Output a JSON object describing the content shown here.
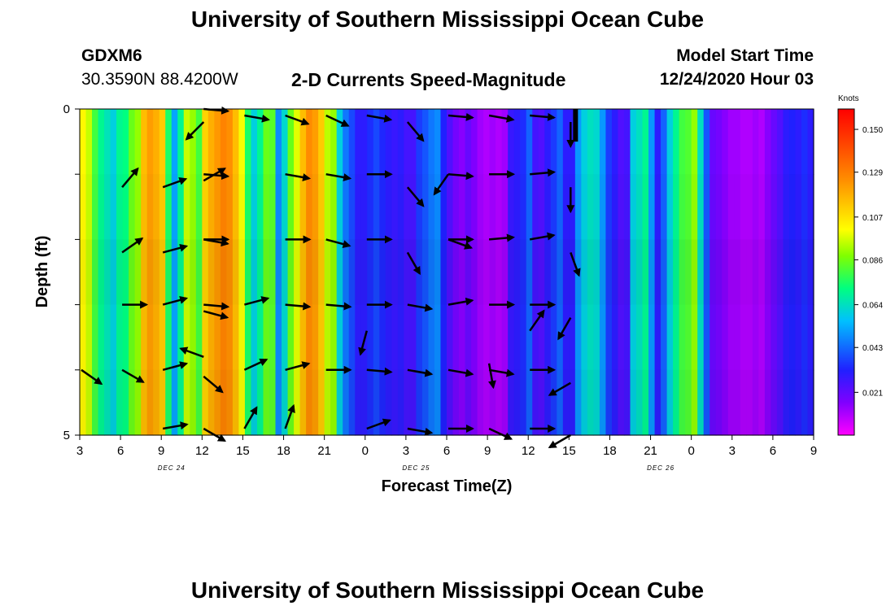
{
  "header": {
    "title": "University of Southern Mississippi Ocean Cube",
    "station_id": "GDXM6",
    "station_coords": "30.3590N 88.4200W",
    "plot_title": "2-D Currents Speed-Magnitude",
    "model_start_label": "Model Start Time",
    "model_start_value": "12/24/2020 Hour 03"
  },
  "footer": {
    "title": "University of Southern Mississippi Ocean Cube"
  },
  "chart_data": {
    "type": "heatmap",
    "title": "2-D Currents Speed-Magnitude",
    "xlabel": "Forecast Time(Z)",
    "ylabel": "Depth (ft)",
    "x_tick_labels": [
      "3",
      "6",
      "9",
      "12",
      "15",
      "18",
      "21",
      "0",
      "3",
      "6",
      "9",
      "12",
      "15",
      "18",
      "21",
      "0",
      "3",
      "6",
      "9"
    ],
    "date_labels": [
      {
        "text": "DEC 24",
        "hour_index": 9
      },
      {
        "text": "DEC 25",
        "hour_index": 33
      },
      {
        "text": "DEC 26",
        "hour_index": 57
      }
    ],
    "y_tick_labels": [
      "0",
      "5"
    ],
    "ylim": [
      0,
      5
    ],
    "xlim_hours": [
      0,
      54
    ],
    "colorbar": {
      "units": "Knots",
      "ticks": [
        "0.150",
        "0.129",
        "0.107",
        "0.086",
        "0.064",
        "0.043",
        "0.021"
      ],
      "range": [
        0.0,
        0.16
      ]
    },
    "speed_profile_knots": [
      0.102,
      0.095,
      0.08,
      0.07,
      0.065,
      0.06,
      0.07,
      0.072,
      0.085,
      0.09,
      0.115,
      0.122,
      0.118,
      0.112,
      0.075,
      0.052,
      0.07,
      0.095,
      0.09,
      0.08,
      0.11,
      0.118,
      0.123,
      0.128,
      0.125,
      0.115,
      0.1,
      0.075,
      0.06,
      0.07,
      0.085,
      0.083,
      0.048,
      0.062,
      0.085,
      0.098,
      0.115,
      0.126,
      0.122,
      0.112,
      0.094,
      0.09,
      0.06,
      0.045,
      0.038,
      0.03,
      0.03,
      0.034,
      0.038,
      0.033,
      0.03,
      0.028,
      0.03,
      0.026,
      0.026,
      0.036,
      0.04,
      0.045,
      0.048,
      0.032,
      0.024,
      0.018,
      0.015,
      0.02,
      0.016,
      0.012,
      0.01,
      0.012,
      0.01,
      0.012,
      0.028,
      0.03,
      0.034,
      0.042,
      0.026,
      0.024,
      0.03,
      0.036,
      0.042,
      0.03,
      0.03,
      0.05,
      0.06,
      0.064,
      0.062,
      0.05,
      0.036,
      0.03,
      0.024,
      0.026,
      0.06,
      0.064,
      0.07,
      0.05,
      0.03,
      0.042,
      0.06,
      0.07,
      0.08,
      0.082,
      0.09,
      0.064,
      0.04,
      0.02,
      0.018,
      0.015,
      0.012,
      0.012,
      0.01,
      0.01,
      0.012,
      0.01,
      0.015,
      0.02,
      0.024,
      0.03,
      0.032,
      0.03,
      0.034,
      0.03
    ],
    "vectors": [
      {
        "t": 0,
        "d": 4.0,
        "dir": 125
      },
      {
        "t": 3,
        "d": 1.2,
        "dir": 40
      },
      {
        "t": 3,
        "d": 2.2,
        "dir": 55
      },
      {
        "t": 3,
        "d": 3.0,
        "dir": 90
      },
      {
        "t": 3,
        "d": 4.0,
        "dir": 120
      },
      {
        "t": 6,
        "d": 1.2,
        "dir": 70
      },
      {
        "t": 6,
        "d": 2.2,
        "dir": 75
      },
      {
        "t": 6,
        "d": 3.0,
        "dir": 75
      },
      {
        "t": 6,
        "d": 4.0,
        "dir": 75
      },
      {
        "t": 6,
        "d": 4.9,
        "dir": 80
      },
      {
        "t": 9,
        "d": 0.0,
        "dir": 95
      },
      {
        "t": 9,
        "d": 0.2,
        "dir": 225
      },
      {
        "t": 9,
        "d": 1.0,
        "dir": 95
      },
      {
        "t": 9,
        "d": 1.1,
        "dir": 60
      },
      {
        "t": 9,
        "d": 2.0,
        "dir": 100
      },
      {
        "t": 9,
        "d": 2.0,
        "dir": 90
      },
      {
        "t": 9,
        "d": 3.0,
        "dir": 95
      },
      {
        "t": 9,
        "d": 3.1,
        "dir": 105
      },
      {
        "t": 9,
        "d": 3.8,
        "dir": 290
      },
      {
        "t": 9,
        "d": 4.1,
        "dir": 130
      },
      {
        "t": 9,
        "d": 4.9,
        "dir": 120
      },
      {
        "t": 12,
        "d": 0.1,
        "dir": 100
      },
      {
        "t": 12,
        "d": 3.0,
        "dir": 75
      },
      {
        "t": 12,
        "d": 4.0,
        "dir": 65
      },
      {
        "t": 12,
        "d": 4.9,
        "dir": 30
      },
      {
        "t": 15,
        "d": 0.1,
        "dir": 110
      },
      {
        "t": 15,
        "d": 1.0,
        "dir": 100
      },
      {
        "t": 15,
        "d": 2.0,
        "dir": 90
      },
      {
        "t": 15,
        "d": 3.0,
        "dir": 95
      },
      {
        "t": 15,
        "d": 4.0,
        "dir": 75
      },
      {
        "t": 15,
        "d": 4.9,
        "dir": 20
      },
      {
        "t": 18,
        "d": 0.1,
        "dir": 115
      },
      {
        "t": 18,
        "d": 1.0,
        "dir": 100
      },
      {
        "t": 18,
        "d": 2.0,
        "dir": 105
      },
      {
        "t": 18,
        "d": 3.0,
        "dir": 95
      },
      {
        "t": 18,
        "d": 4.0,
        "dir": 90
      },
      {
        "t": 21,
        "d": 0.1,
        "dir": 100
      },
      {
        "t": 21,
        "d": 1.0,
        "dir": 90
      },
      {
        "t": 21,
        "d": 2.0,
        "dir": 90
      },
      {
        "t": 21,
        "d": 3.0,
        "dir": 90
      },
      {
        "t": 21,
        "d": 3.4,
        "dir": 195
      },
      {
        "t": 21,
        "d": 4.0,
        "dir": 95
      },
      {
        "t": 21,
        "d": 4.9,
        "dir": 70
      },
      {
        "t": 24,
        "d": 0.2,
        "dir": 140
      },
      {
        "t": 24,
        "d": 1.2,
        "dir": 140
      },
      {
        "t": 24,
        "d": 2.2,
        "dir": 150
      },
      {
        "t": 24,
        "d": 3.0,
        "dir": 100
      },
      {
        "t": 24,
        "d": 4.0,
        "dir": 100
      },
      {
        "t": 24,
        "d": 4.9,
        "dir": 100
      },
      {
        "t": 27,
        "d": 0.1,
        "dir": 95
      },
      {
        "t": 27,
        "d": 1.0,
        "dir": 95
      },
      {
        "t": 27,
        "d": 1.0,
        "dir": 215
      },
      {
        "t": 27,
        "d": 2.0,
        "dir": 90
      },
      {
        "t": 27,
        "d": 2.0,
        "dir": 110
      },
      {
        "t": 27,
        "d": 3.0,
        "dir": 80
      },
      {
        "t": 27,
        "d": 4.0,
        "dir": 100
      },
      {
        "t": 27,
        "d": 4.9,
        "dir": 90
      },
      {
        "t": 30,
        "d": 0.1,
        "dir": 100
      },
      {
        "t": 30,
        "d": 1.0,
        "dir": 90
      },
      {
        "t": 30,
        "d": 2.0,
        "dir": 85
      },
      {
        "t": 30,
        "d": 3.0,
        "dir": 90
      },
      {
        "t": 30,
        "d": 3.9,
        "dir": 170
      },
      {
        "t": 30,
        "d": 4.0,
        "dir": 100
      },
      {
        "t": 30,
        "d": 4.9,
        "dir": 115
      },
      {
        "t": 33,
        "d": 0.1,
        "dir": 95
      },
      {
        "t": 33,
        "d": 1.0,
        "dir": 85
      },
      {
        "t": 33,
        "d": 2.0,
        "dir": 80
      },
      {
        "t": 33,
        "d": 3.0,
        "dir": 90
      },
      {
        "t": 33,
        "d": 3.4,
        "dir": 35
      },
      {
        "t": 33,
        "d": 4.0,
        "dir": 90
      },
      {
        "t": 33,
        "d": 4.9,
        "dir": 90
      },
      {
        "t": 36,
        "d": 0.2,
        "dir": 180
      },
      {
        "t": 36,
        "d": 1.2,
        "dir": 180
      },
      {
        "t": 36,
        "d": 2.2,
        "dir": 160
      },
      {
        "t": 36,
        "d": 3.2,
        "dir": 210
      },
      {
        "t": 36,
        "d": 4.2,
        "dir": 240
      },
      {
        "t": 36,
        "d": 5.0,
        "dir": 240
      }
    ]
  }
}
